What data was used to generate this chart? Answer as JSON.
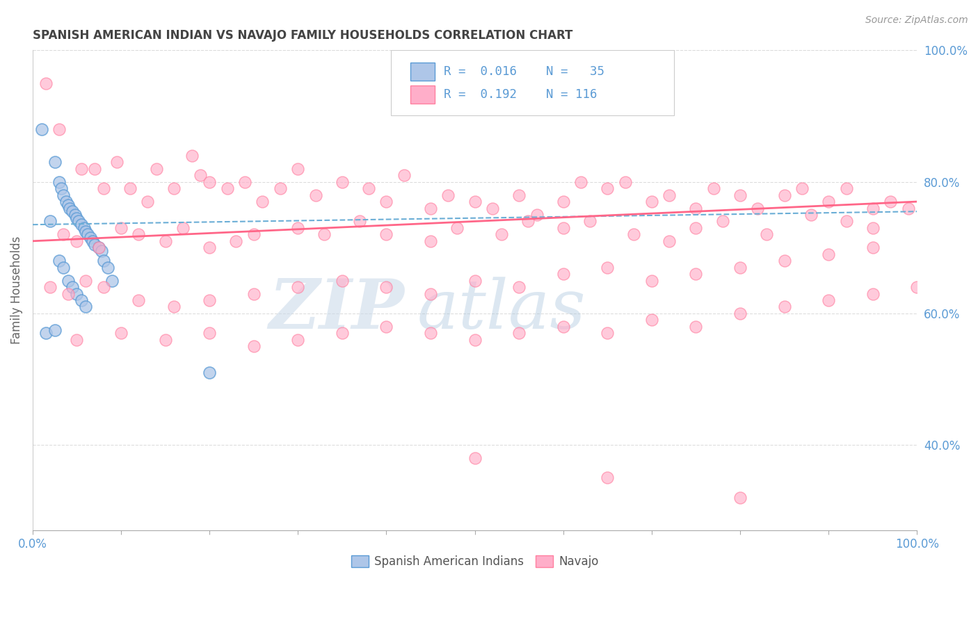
{
  "title": "SPANISH AMERICAN INDIAN VS NAVAJO FAMILY HOUSEHOLDS CORRELATION CHART",
  "source": "Source: ZipAtlas.com",
  "ylabel": "Family Households",
  "right_yticks": [
    40.0,
    60.0,
    80.0,
    100.0
  ],
  "watermark_zip": "ZIP",
  "watermark_atlas": "atlas",
  "blue_scatter_x": [
    1.0,
    2.5,
    3.0,
    3.2,
    3.5,
    3.8,
    4.0,
    4.2,
    4.5,
    4.8,
    5.0,
    5.2,
    5.5,
    5.8,
    6.0,
    6.2,
    6.5,
    6.8,
    7.0,
    7.5,
    7.8,
    8.0,
    8.5,
    9.0,
    3.0,
    3.5,
    4.0,
    4.5,
    5.0,
    5.5,
    6.0,
    2.0,
    1.5,
    2.5,
    20.0
  ],
  "blue_scatter_y": [
    88.0,
    83.0,
    80.0,
    79.0,
    78.0,
    77.0,
    76.5,
    76.0,
    75.5,
    75.0,
    74.5,
    74.0,
    73.5,
    73.0,
    72.5,
    72.0,
    71.5,
    71.0,
    70.5,
    70.0,
    69.5,
    68.0,
    67.0,
    65.0,
    68.0,
    67.0,
    65.0,
    64.0,
    63.0,
    62.0,
    61.0,
    74.0,
    57.0,
    57.5,
    51.0
  ],
  "pink_scatter_x": [
    1.5,
    3.0,
    5.5,
    7.0,
    8.0,
    9.5,
    11.0,
    13.0,
    14.0,
    16.0,
    18.0,
    19.0,
    20.0,
    22.0,
    24.0,
    26.0,
    28.0,
    30.0,
    32.0,
    35.0,
    38.0,
    40.0,
    42.0,
    45.0,
    47.0,
    50.0,
    52.0,
    55.0,
    57.0,
    60.0,
    62.0,
    65.0,
    67.0,
    70.0,
    72.0,
    75.0,
    77.0,
    80.0,
    82.0,
    85.0,
    87.0,
    90.0,
    92.0,
    95.0,
    97.0,
    99.0,
    3.5,
    5.0,
    7.5,
    10.0,
    12.0,
    15.0,
    17.0,
    20.0,
    23.0,
    25.0,
    30.0,
    33.0,
    37.0,
    40.0,
    45.0,
    48.0,
    53.0,
    56.0,
    60.0,
    63.0,
    68.0,
    72.0,
    75.0,
    78.0,
    83.0,
    88.0,
    92.0,
    95.0,
    2.0,
    4.0,
    6.0,
    8.0,
    12.0,
    16.0,
    20.0,
    25.0,
    30.0,
    35.0,
    40.0,
    45.0,
    50.0,
    55.0,
    60.0,
    65.0,
    70.0,
    75.0,
    80.0,
    85.0,
    90.0,
    95.0,
    5.0,
    10.0,
    15.0,
    20.0,
    25.0,
    30.0,
    35.0,
    40.0,
    45.0,
    50.0,
    55.0,
    60.0,
    65.0,
    70.0,
    75.0,
    80.0,
    85.0,
    90.0,
    95.0,
    100.0,
    50.0,
    65.0,
    80.0
  ],
  "pink_scatter_y": [
    95.0,
    88.0,
    82.0,
    82.0,
    79.0,
    83.0,
    79.0,
    77.0,
    82.0,
    79.0,
    84.0,
    81.0,
    80.0,
    79.0,
    80.0,
    77.0,
    79.0,
    82.0,
    78.0,
    80.0,
    79.0,
    77.0,
    81.0,
    76.0,
    78.0,
    77.0,
    76.0,
    78.0,
    75.0,
    77.0,
    80.0,
    79.0,
    80.0,
    77.0,
    78.0,
    76.0,
    79.0,
    78.0,
    76.0,
    78.0,
    79.0,
    77.0,
    79.0,
    76.0,
    77.0,
    76.0,
    72.0,
    71.0,
    70.0,
    73.0,
    72.0,
    71.0,
    73.0,
    70.0,
    71.0,
    72.0,
    73.0,
    72.0,
    74.0,
    72.0,
    71.0,
    73.0,
    72.0,
    74.0,
    73.0,
    74.0,
    72.0,
    71.0,
    73.0,
    74.0,
    72.0,
    75.0,
    74.0,
    73.0,
    64.0,
    63.0,
    65.0,
    64.0,
    62.0,
    61.0,
    62.0,
    63.0,
    64.0,
    65.0,
    64.0,
    63.0,
    65.0,
    64.0,
    66.0,
    67.0,
    65.0,
    66.0,
    67.0,
    68.0,
    69.0,
    70.0,
    56.0,
    57.0,
    56.0,
    57.0,
    55.0,
    56.0,
    57.0,
    58.0,
    57.0,
    56.0,
    57.0,
    58.0,
    57.0,
    59.0,
    58.0,
    60.0,
    61.0,
    62.0,
    63.0,
    64.0,
    38.0,
    35.0,
    32.0
  ],
  "xmin": 0.0,
  "xmax": 100.0,
  "ymin": 27.0,
  "ymax": 100.0,
  "blue_dot_color": "#AEC6E8",
  "blue_edge_color": "#5B9BD5",
  "pink_dot_color": "#FFAEC9",
  "pink_edge_color": "#FF80A0",
  "trendline_blue_color": "#6BAED6",
  "trendline_pink_color": "#FF6688",
  "grid_color": "#DDDDDD",
  "background_color": "#FFFFFF",
  "title_color": "#444444",
  "source_color": "#999999",
  "ytick_color": "#5B9BD5",
  "xtick_color": "#5B9BD5"
}
